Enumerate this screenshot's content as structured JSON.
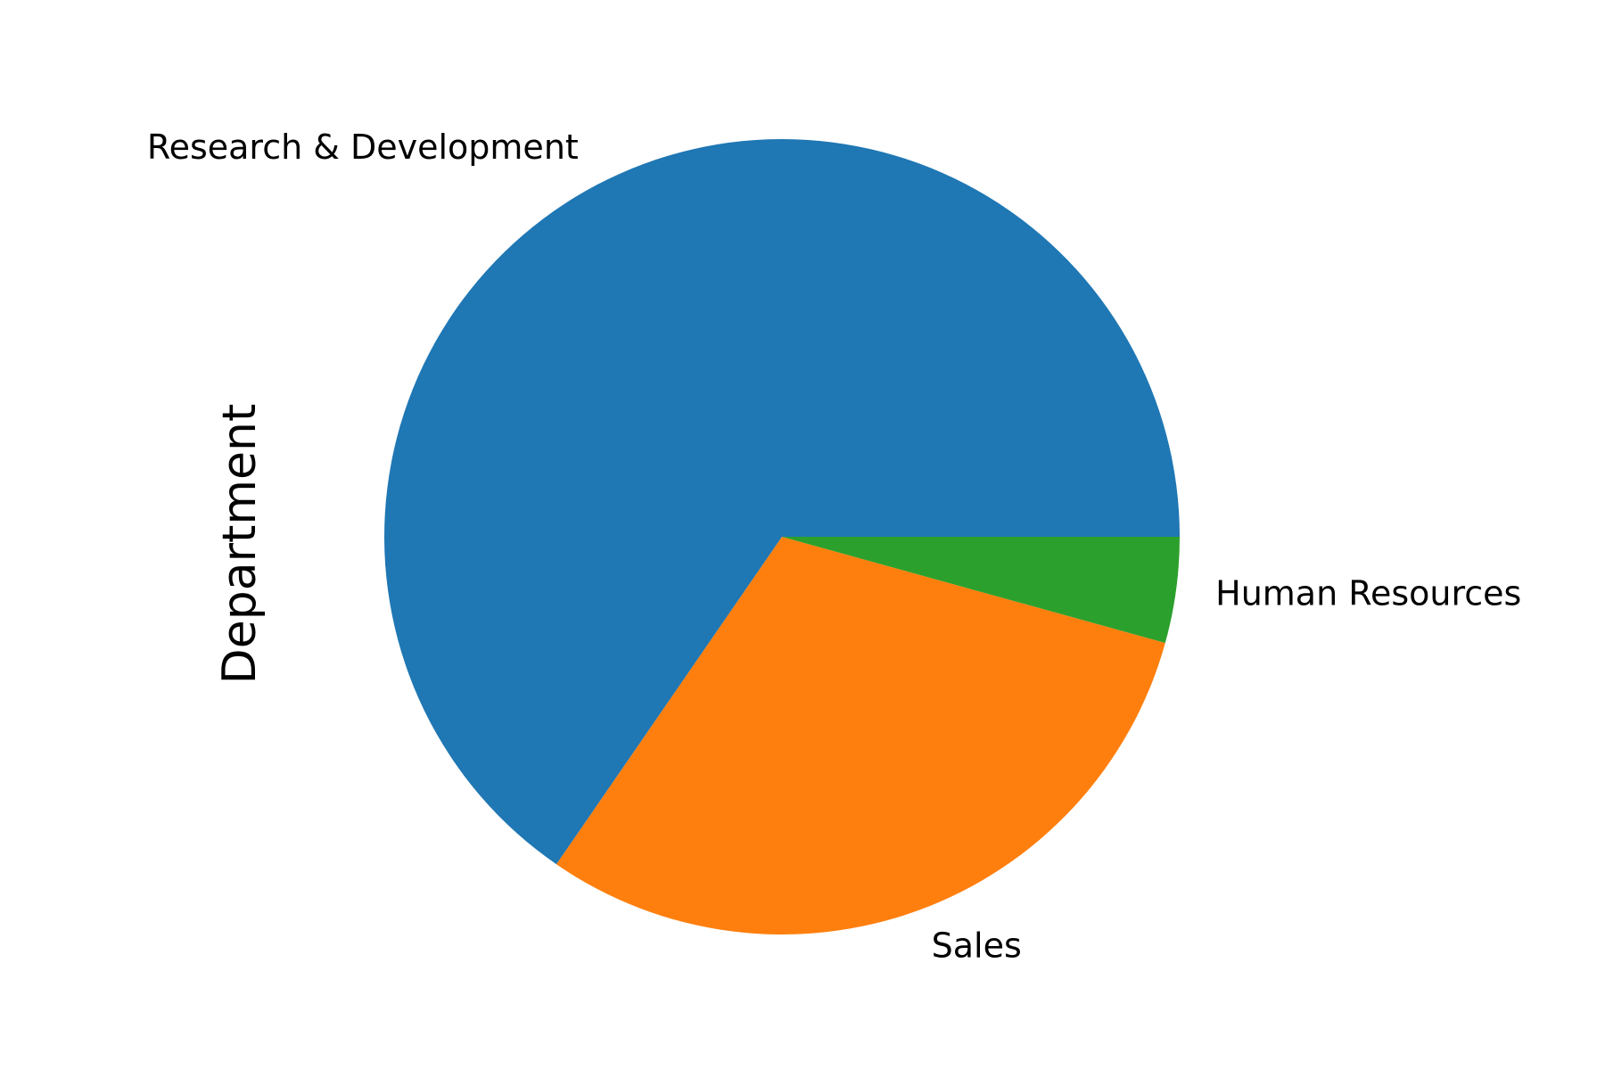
{
  "chart_data": {
    "type": "pie",
    "title": "",
    "ylabel": "Department",
    "labels": [
      "Research & Development",
      "Sales",
      "Human Resources"
    ],
    "values": [
      65.4,
      30.3,
      4.3
    ],
    "colors": [
      "#1f77b4",
      "#ff7f0e",
      "#2ca02c"
    ],
    "start_angle_deg": 0,
    "direction": "counterclockwise",
    "legend": "none"
  }
}
